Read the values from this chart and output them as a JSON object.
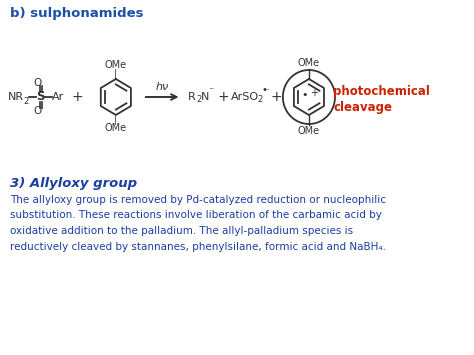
{
  "title": "b) sulphonamides",
  "title_color": "#1a4faa",
  "bg_color": "#ffffff",
  "text_color": "#1a3fa0",
  "dark_color": "#333333",
  "photochem_color": "#cc2200",
  "section_title": "3) Allyloxy group",
  "body_lines": [
    "The allyloxy group is removed by Pd-catalyzed reduction or nucleophilic",
    "substitution. These reactions involve liberation of the carbamic acid by",
    "oxidative addition to the palladium. The allyl-palladium species is",
    "reductively cleaved by stannanes, phenylsilane, formic acid and NaBH₄."
  ]
}
